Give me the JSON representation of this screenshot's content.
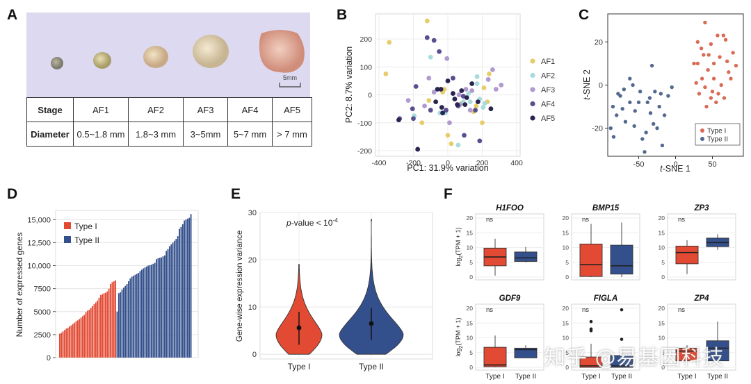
{
  "panels": {
    "A": "A",
    "B": "B",
    "C": "C",
    "D": "D",
    "E": "E",
    "F": "F"
  },
  "panelA": {
    "scale_label": "5mm",
    "table": {
      "header": [
        "Stage",
        "AF1",
        "AF2",
        "AF3",
        "AF4",
        "AF5"
      ],
      "row": [
        "Diameter",
        "0.5~1.8 mm",
        "1.8~3 mm",
        "3~5mm",
        "5~7 mm",
        "> 7 mm"
      ]
    },
    "colors": {
      "photo_bg": "#dcd9f0"
    }
  },
  "chart_data": [
    {
      "id": "B",
      "type": "scatter",
      "xlabel": "PC1: 31.9% variation",
      "ylabel": "PC2: 8.7% variation",
      "xlim": [
        -420,
        420
      ],
      "ylim": [
        -220,
        290
      ],
      "xticks": [
        -400,
        -200,
        0,
        200,
        400
      ],
      "yticks": [
        -200,
        -100,
        0,
        100,
        200
      ],
      "grid": true,
      "legend_position": "right",
      "series": [
        {
          "name": "AF1",
          "color": "#e8cc6a",
          "points": [
            [
              -340,
              188
            ],
            [
              -360,
              75
            ],
            [
              -120,
              265
            ],
            [
              -150,
              -100
            ],
            [
              -110,
              -20
            ],
            [
              -20,
              20
            ],
            [
              -30,
              10
            ],
            [
              0,
              -145
            ],
            [
              20,
              -175
            ],
            [
              80,
              -30
            ],
            [
              150,
              -60
            ],
            [
              165,
              -40
            ],
            [
              200,
              -100
            ],
            [
              210,
              25
            ],
            [
              230,
              -25
            ],
            [
              240,
              75
            ]
          ]
        },
        {
          "name": "AF2",
          "color": "#a8dbdc",
          "points": [
            [
              -195,
              -75
            ],
            [
              -100,
              135
            ],
            [
              -60,
              20
            ],
            [
              -45,
              -65
            ],
            [
              -15,
              -65
            ],
            [
              90,
              -25
            ],
            [
              120,
              5
            ],
            [
              130,
              -25
            ],
            [
              170,
              65
            ],
            [
              170,
              40
            ],
            [
              185,
              -15
            ],
            [
              205,
              -45
            ],
            [
              215,
              -30
            ],
            [
              60,
              -180
            ]
          ]
        },
        {
          "name": "AF3",
          "color": "#b19ad0",
          "points": [
            [
              -230,
              -20
            ],
            [
              -135,
              -40
            ],
            [
              -110,
              60
            ],
            [
              -80,
              10
            ],
            [
              -5,
              130
            ],
            [
              10,
              -100
            ],
            [
              40,
              -15
            ],
            [
              65,
              0
            ],
            [
              70,
              -35
            ],
            [
              105,
              20
            ],
            [
              130,
              -55
            ],
            [
              140,
              15
            ],
            [
              235,
              55
            ],
            [
              260,
              90
            ],
            [
              280,
              20
            ],
            [
              310,
              35
            ]
          ]
        },
        {
          "name": "AF4",
          "color": "#574f8e",
          "points": [
            [
              -280,
              -85
            ],
            [
              -205,
              -50
            ],
            [
              -200,
              -85
            ],
            [
              -185,
              30
            ],
            [
              -120,
              205
            ],
            [
              -100,
              -55
            ],
            [
              -80,
              195
            ],
            [
              -50,
              155
            ],
            [
              -10,
              -55
            ],
            [
              30,
              60
            ],
            [
              60,
              -40
            ],
            [
              90,
              -5
            ],
            [
              95,
              -145
            ],
            [
              160,
              -55
            ],
            [
              185,
              -165
            ]
          ]
        },
        {
          "name": "AF5",
          "color": "#292450",
          "points": [
            [
              -285,
              -90
            ],
            [
              -175,
              -195
            ],
            [
              -70,
              -25
            ],
            [
              -60,
              20
            ],
            [
              -40,
              20
            ],
            [
              -35,
              -45
            ],
            [
              -30,
              -65
            ],
            [
              0,
              50
            ],
            [
              30,
              5
            ],
            [
              40,
              -15
            ],
            [
              55,
              -35
            ],
            [
              80,
              15
            ],
            [
              100,
              -35
            ],
            [
              110,
              -10
            ],
            [
              140,
              40
            ],
            [
              175,
              -25
            ],
            [
              250,
              -50
            ]
          ]
        }
      ]
    },
    {
      "id": "C",
      "type": "scatter",
      "xlabel": "t-SNE 1",
      "ylabel": "t-SNE 2",
      "xlim": [
        -92,
        92
      ],
      "ylim": [
        -33,
        33
      ],
      "xticks": [
        -50,
        0,
        50
      ],
      "yticks": [
        -20,
        0,
        20
      ],
      "grid": false,
      "legend_position": "bottom-right",
      "series": [
        {
          "name": "Type I",
          "color": "#d96b55",
          "points": [
            [
              25,
              10
            ],
            [
              30,
              20
            ],
            [
              35,
              17
            ],
            [
              40,
              29
            ],
            [
              45,
              14
            ],
            [
              48,
              19
            ],
            [
              52,
              10
            ],
            [
              57,
              23
            ],
            [
              65,
              23
            ],
            [
              70,
              11
            ],
            [
              72,
              6
            ],
            [
              62,
              0
            ],
            [
              55,
              -8
            ],
            [
              48,
              -6
            ],
            [
              40,
              -1
            ],
            [
              32,
              -4
            ],
            [
              28,
              1
            ],
            [
              36,
              3
            ],
            [
              44,
              7
            ],
            [
              52,
              3
            ],
            [
              60,
              13
            ],
            [
              68,
              21
            ],
            [
              78,
              15
            ],
            [
              82,
              9
            ],
            [
              75,
              3
            ],
            [
              66,
              -6
            ],
            [
              58,
              -4
            ],
            [
              50,
              -3
            ],
            [
              42,
              -10
            ],
            [
              30,
              10
            ],
            [
              38,
              14
            ]
          ]
        },
        {
          "name": "Type II",
          "color": "#54698f",
          "points": [
            [
              -88,
              -20
            ],
            [
              -85,
              -10
            ],
            [
              -80,
              -14
            ],
            [
              -78,
              -4
            ],
            [
              -75,
              -5
            ],
            [
              -70,
              -2
            ],
            [
              -68,
              -17
            ],
            [
              -62,
              3
            ],
            [
              -58,
              0
            ],
            [
              -55,
              -12
            ],
            [
              -50,
              -8
            ],
            [
              -45,
              -25
            ],
            [
              -42,
              -31
            ],
            [
              -40,
              -22
            ],
            [
              -38,
              -8
            ],
            [
              -35,
              -6
            ],
            [
              -32,
              9
            ],
            [
              -30,
              -18
            ],
            [
              -28,
              -3
            ],
            [
              -25,
              -20
            ],
            [
              -22,
              -10
            ],
            [
              -20,
              -4
            ],
            [
              -18,
              -28
            ],
            [
              -15,
              -14
            ],
            [
              -10,
              -5
            ],
            [
              -5,
              -1
            ],
            [
              -62,
              -8
            ],
            [
              -48,
              -3
            ],
            [
              -34,
              -13
            ],
            [
              -56,
              -19
            ],
            [
              -72,
              -11
            ],
            [
              -84,
              -24
            ]
          ]
        }
      ]
    },
    {
      "id": "D",
      "type": "bar",
      "ylabel": "Number of expressed genes",
      "ylim": [
        0,
        16000
      ],
      "yticks": [
        0,
        2500,
        5000,
        7500,
        10000,
        12500,
        15000
      ],
      "grid": true,
      "legend_position": "top-left",
      "series": [
        {
          "name": "Type I",
          "color": "#e24a33",
          "values": [
            2600,
            2700,
            2850,
            3000,
            3150,
            3250,
            3400,
            3500,
            3650,
            3800,
            3950,
            4050,
            4200,
            4350,
            4500,
            4650,
            4950,
            5100,
            5200,
            5400,
            5600,
            5800,
            6000,
            6200,
            6500,
            6800,
            6900,
            7000,
            7050,
            7200,
            7500,
            8000,
            8200,
            8300,
            8400
          ]
        },
        {
          "name": "Type II",
          "color": "#34508c",
          "values": [
            5000,
            7000,
            7100,
            7400,
            7600,
            7800,
            8000,
            8300,
            8600,
            8800,
            8900,
            9000,
            9100,
            9200,
            9400,
            9550,
            9700,
            9800,
            9900,
            10000,
            10050,
            10100,
            10200,
            10300,
            10700,
            10800,
            10850,
            10900,
            11000,
            11100,
            11600,
            11800,
            12100,
            12300,
            12500,
            12700,
            12900,
            13200,
            14000,
            14200,
            14500,
            14900,
            15000,
            15100,
            15200,
            15600
          ]
        }
      ]
    },
    {
      "id": "E",
      "type": "violin",
      "ylabel": "Gene-wise expression variance",
      "annotation_main": "p-value < 10",
      "annotation_exp": "-4",
      "categories": [
        "Type I",
        "Type II"
      ],
      "ylim": [
        -1,
        30
      ],
      "yticks": [
        0,
        10,
        20,
        30
      ],
      "grid": true,
      "series": [
        {
          "name": "Type I",
          "color": "#e24a33",
          "max": 19,
          "median": 5.6,
          "q1": 2,
          "q3": 9
        },
        {
          "name": "Type II",
          "color": "#34508c",
          "max": 28.5,
          "median": 6.5,
          "q1": 3,
          "q3": 9.8
        }
      ]
    },
    {
      "id": "F",
      "type": "box",
      "categories": [
        "Type I",
        "Type II"
      ],
      "ylabel": "log2(TPM + 1)",
      "ylim": [
        0,
        20
      ],
      "yticks": [
        0,
        5,
        10,
        15,
        20
      ],
      "colors": {
        "Type I": "#e24a33",
        "Type II": "#34508c"
      },
      "facets": [
        {
          "gene": "H1FOO",
          "sig": "ns",
          "boxes": [
            {
              "min": 0.5,
              "q1": 3.8,
              "med": 6.8,
              "q3": 9.8,
              "max": 13,
              "outliers": []
            },
            {
              "min": 5,
              "q1": 5.3,
              "med": 6.5,
              "q3": 8.5,
              "max": 10.2,
              "outliers": []
            }
          ]
        },
        {
          "gene": "BMP15",
          "sig": "ns",
          "boxes": [
            {
              "min": 0,
              "q1": 0.2,
              "med": 4.2,
              "q3": 11.2,
              "max": 18,
              "outliers": []
            },
            {
              "min": 0,
              "q1": 1,
              "med": 3.8,
              "q3": 10.8,
              "max": 18.5,
              "outliers": []
            }
          ]
        },
        {
          "gene": "ZP3",
          "sig": "ns",
          "boxes": [
            {
              "min": 1,
              "q1": 4.5,
              "med": 8.3,
              "q3": 10.5,
              "max": 12.5,
              "outliers": []
            },
            {
              "min": 9.2,
              "q1": 10.3,
              "med": 11.7,
              "q3": 13.2,
              "max": 14.5,
              "outliers": []
            }
          ]
        },
        {
          "gene": "GDF9",
          "sig": "ns",
          "boxes": [
            {
              "min": 0,
              "q1": 0.2,
              "med": 0.8,
              "q3": 6.8,
              "max": 10.8,
              "outliers": []
            },
            {
              "min": 3.2,
              "q1": 3.2,
              "med": 6,
              "q3": 6.5,
              "max": 7.5,
              "outliers": []
            }
          ]
        },
        {
          "gene": "FIGLA",
          "sig": "ns",
          "boxes": [
            {
              "min": 0,
              "q1": 0,
              "med": 0.5,
              "q3": 3.5,
              "max": 8,
              "outliers": [
                12.4,
                13,
                15.5
              ]
            },
            {
              "min": 0,
              "q1": 0,
              "med": 0.5,
              "q3": 4,
              "max": 6.5,
              "outliers": [
                9.5,
                19.5
              ]
            }
          ]
        },
        {
          "gene": "ZP4",
          "sig": "ns",
          "boxes": [
            {
              "min": 2.2,
              "q1": 2.2,
              "med": 5.5,
              "q3": 6.5,
              "max": 7.5,
              "outliers": []
            },
            {
              "min": 2.2,
              "q1": 2.2,
              "med": 6.5,
              "q3": 9,
              "max": 15.5,
              "outliers": []
            }
          ]
        }
      ]
    }
  ],
  "watermark": "知乎 @易基因科技"
}
